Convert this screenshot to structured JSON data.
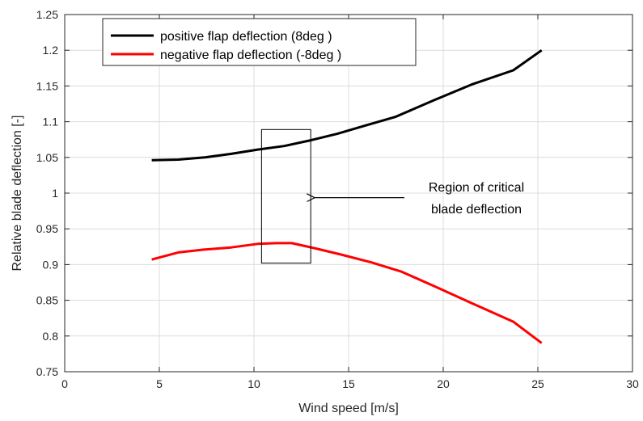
{
  "chart_data": {
    "type": "line",
    "title": "",
    "xlabel": "Wind speed [m/s]",
    "ylabel": "Relative blade deflection [-]",
    "xlim": [
      0,
      30
    ],
    "ylim": [
      0.75,
      1.25
    ],
    "xticks": [
      0,
      5,
      10,
      15,
      20,
      25,
      30
    ],
    "yticks": [
      0.75,
      0.8,
      0.85,
      0.9,
      0.95,
      1,
      1.05,
      1.1,
      1.15,
      1.2,
      1.25
    ],
    "xtick_labels": [
      "0",
      "5",
      "10",
      "15",
      "20",
      "25",
      "30"
    ],
    "ytick_labels": [
      "0.75",
      "0.8",
      "0.85",
      "0.9",
      "0.95",
      "1",
      "1.05",
      "1.1",
      "1.15",
      "1.2",
      "1.25"
    ],
    "grid": true,
    "legend_position": "top-left",
    "series": [
      {
        "name": "positive flap deflection (8deg )",
        "color": "#000000",
        "x": [
          4.6,
          6.0,
          7.4,
          8.8,
          10.2,
          11.6,
          13.0,
          14.4,
          15.8,
          17.5,
          19.5,
          21.5,
          23.7,
          25.2
        ],
        "y": [
          1.046,
          1.047,
          1.05,
          1.055,
          1.061,
          1.066,
          1.074,
          1.083,
          1.094,
          1.107,
          1.13,
          1.152,
          1.172,
          1.2
        ]
      },
      {
        "name": "negative flap deflection (-8deg )",
        "color": "#ff0000",
        "x": [
          4.6,
          6.0,
          7.4,
          8.8,
          10.2,
          11.2,
          12.0,
          13.2,
          14.6,
          16.2,
          17.8,
          19.5,
          21.5,
          23.7,
          25.2
        ],
        "y": [
          0.907,
          0.917,
          0.921,
          0.924,
          0.929,
          0.93,
          0.93,
          0.923,
          0.914,
          0.903,
          0.89,
          0.87,
          0.846,
          0.82,
          0.79
        ]
      }
    ],
    "annotations": {
      "region_box": {
        "x_range": [
          10.4,
          13.0
        ],
        "y_range": [
          0.902,
          1.089
        ]
      },
      "text_lines": [
        "Region of critical",
        "blade deflection"
      ],
      "arrow_tip": {
        "x": 13.0,
        "y": 0.997
      }
    }
  }
}
